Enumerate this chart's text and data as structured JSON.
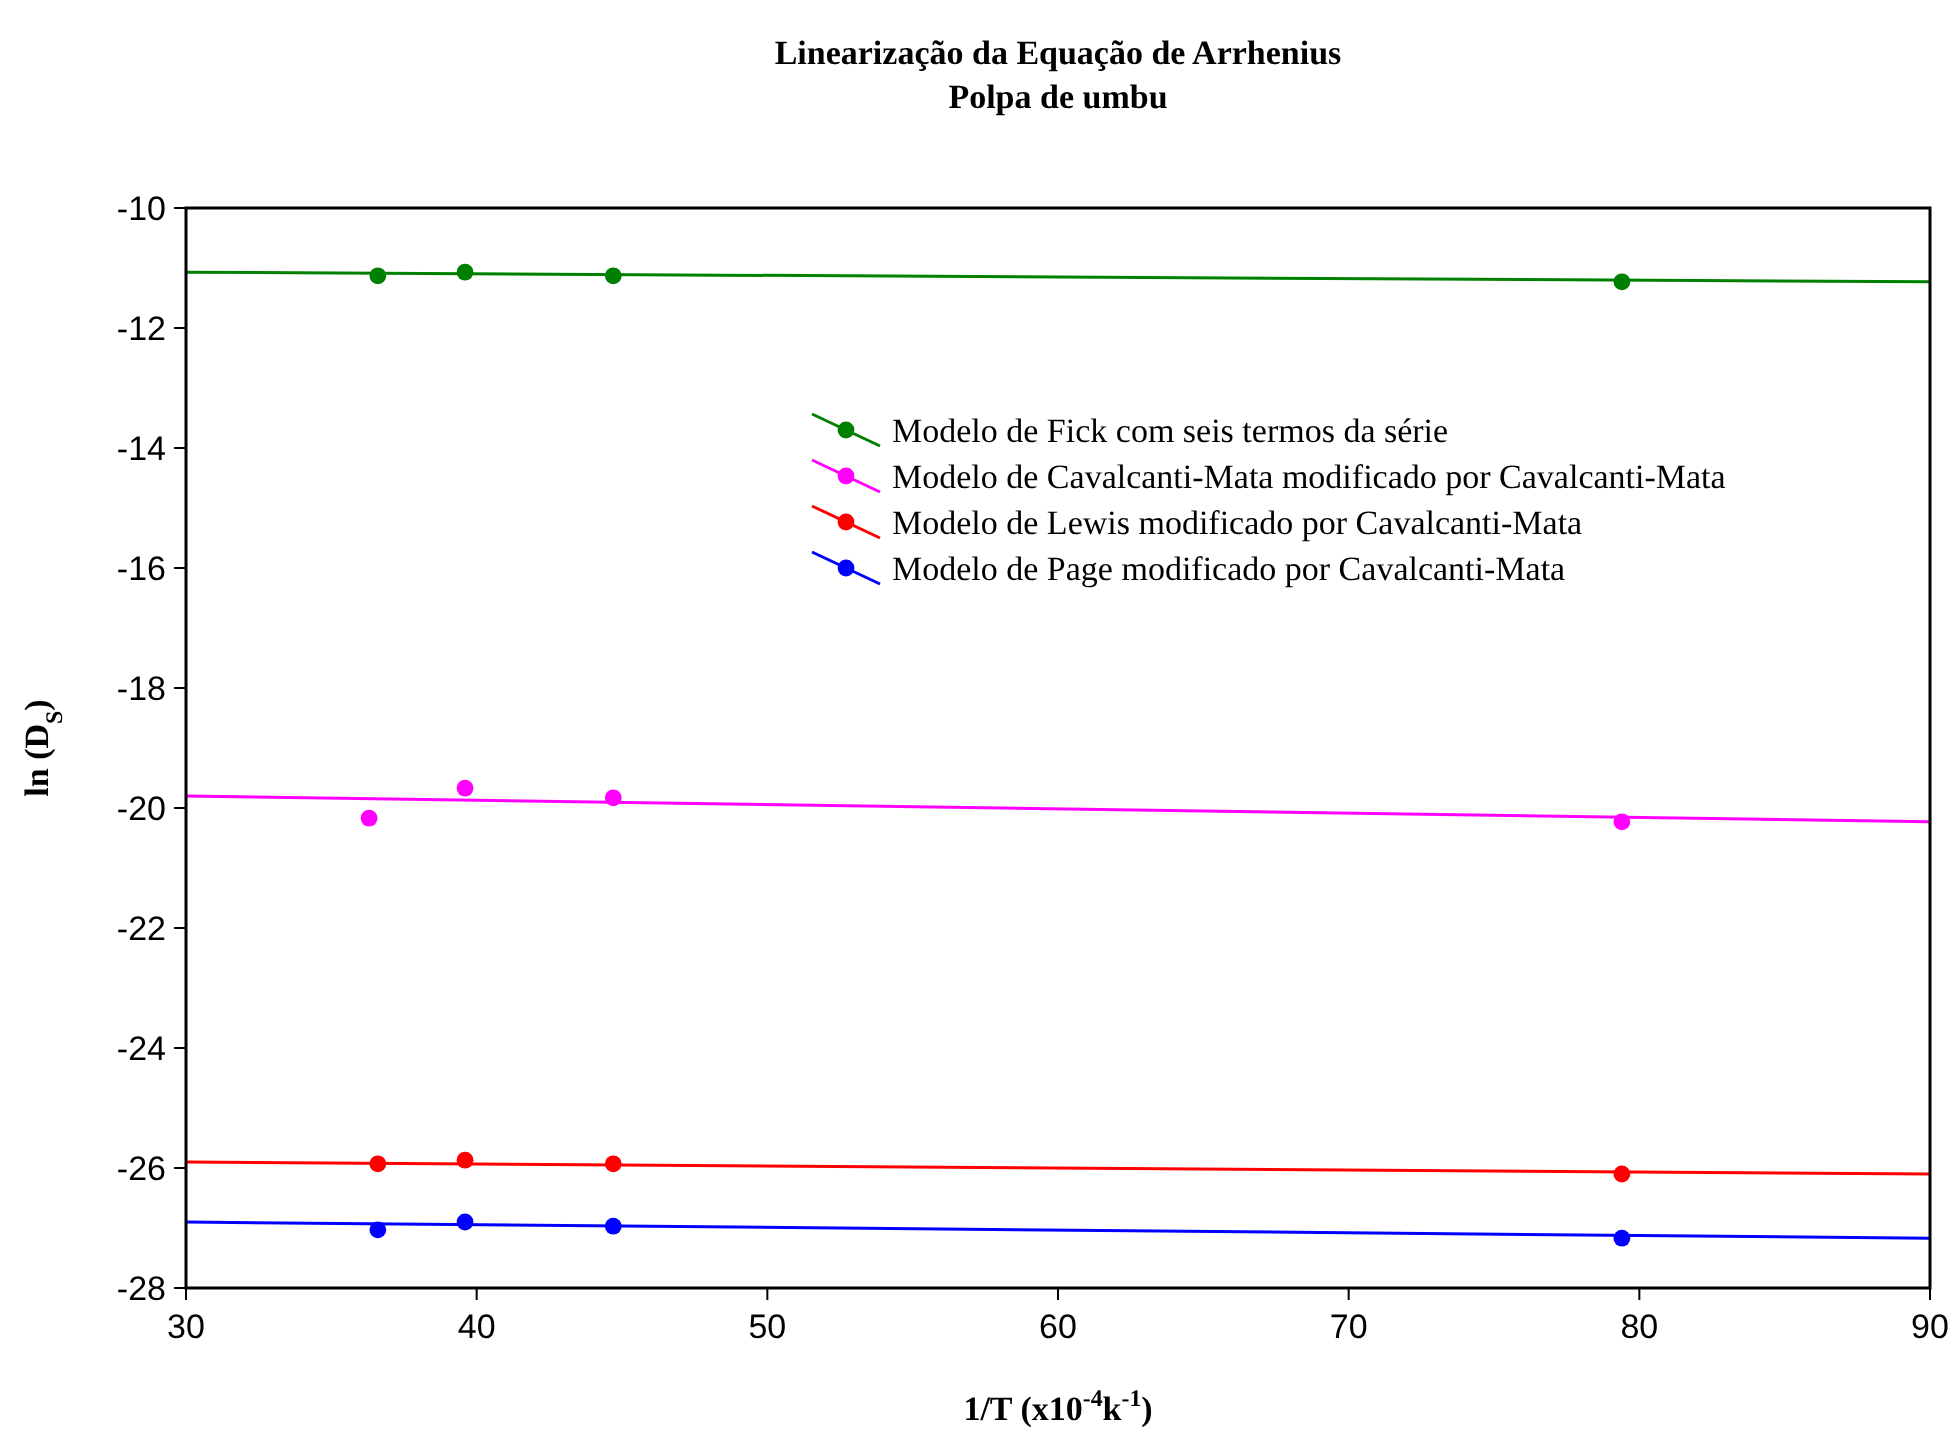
{
  "chart_data": {
    "type": "scatter",
    "title": "Linearização da Equação de Arrhenius",
    "subtitle": "Polpa de umbu",
    "xlabel": "1/T (x10$^{-4}$k$^{-1}$)",
    "ylabel": "ln (D$_{S}$)",
    "xlim": [
      30,
      90
    ],
    "xticks": [
      30,
      40,
      50,
      60,
      70,
      80,
      90
    ],
    "ylim": [
      -28,
      -10
    ],
    "yticks": [
      -28,
      -26,
      -24,
      -22,
      -20,
      -18,
      -16,
      -14,
      -12,
      -10
    ],
    "grid": false,
    "legend": "top right",
    "marker": "circle",
    "series": [
      {
        "type": "line",
        "marker": "none",
        "color": "#008000",
        "x": [
          30,
          90
        ],
        "values": [
          -11.07,
          -11.23
        ]
      },
      {
        "type": "line",
        "marker": "none",
        "color": "#ff00ff",
        "x": [
          30,
          90
        ],
        "values": [
          -19.8,
          -20.23
        ]
      },
      {
        "type": "line",
        "marker": "none",
        "color": "#ff0000",
        "x": [
          30,
          90
        ],
        "values": [
          -25.9,
          -26.1
        ]
      },
      {
        "type": "line",
        "marker": "none",
        "color": "#0000ff",
        "x": [
          30,
          90
        ],
        "values": [
          -26.9,
          -27.17
        ]
      },
      {
        "name": "Modelo de Fick com seis termos da série",
        "color": "#008000",
        "x": [
          36.6,
          39.6,
          44.7,
          79.4
        ],
        "values": [
          -11.13,
          -11.07,
          -11.13,
          -11.23
        ]
      },
      {
        "name": "Modelo de Cavalcanti-Mata modificado por Cavalcanti-Mata",
        "color": "#ff00ff",
        "x": [
          36.3,
          39.6,
          44.7,
          79.4
        ],
        "values": [
          -20.17,
          -19.67,
          -19.83,
          -20.23
        ]
      },
      {
        "name": "Modelo de Lewis modificado por Cavalcanti-Mata",
        "color": "#ff0000",
        "x": [
          36.6,
          39.6,
          44.7,
          79.4
        ],
        "values": [
          -25.93,
          -25.87,
          -25.93,
          -26.1
        ]
      },
      {
        "name": "Modelo de Page modificado por Cavalcanti-Mata",
        "color": "#0000ff",
        "x": [
          36.6,
          39.6,
          44.7,
          79.4
        ],
        "values": [
          -27.03,
          -26.9,
          -26.97,
          -27.17
        ]
      }
    ]
  }
}
